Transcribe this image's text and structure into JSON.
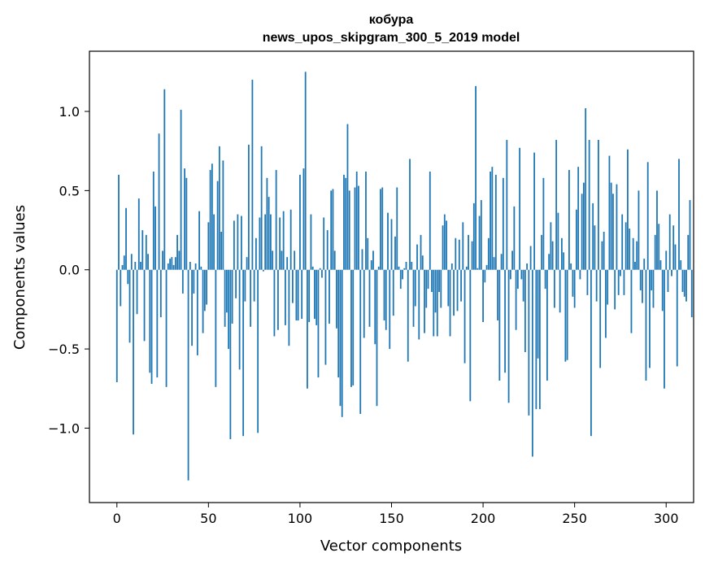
{
  "chart_data": {
    "type": "bar",
    "title": "кобура",
    "subtitle": "news_upos_skipgram_300_5_2019 model",
    "xlabel": "Vector components",
    "ylabel": "Components values",
    "xlim": [
      -15,
      315
    ],
    "ylim": [
      -1.47,
      1.38
    ],
    "xticks": [
      0,
      50,
      100,
      150,
      200,
      250,
      300
    ],
    "xtick_labels": [
      "0",
      "50",
      "100",
      "150",
      "200",
      "250",
      "300"
    ],
    "yticks": [
      -1.0,
      -0.5,
      0.0,
      0.5,
      1.0
    ],
    "ytick_labels": [
      "−1.0",
      "−0.5",
      "0.0",
      "0.5",
      "1.0"
    ],
    "bar_color": "#1f77b4",
    "grid": false,
    "values": [
      -0.71,
      0.6,
      -0.23,
      0.03,
      0.09,
      0.39,
      -0.09,
      -0.46,
      0.1,
      -1.04,
      0.05,
      -0.28,
      0.45,
      0.05,
      0.25,
      -0.45,
      0.22,
      0.1,
      -0.65,
      -0.72,
      0.62,
      0.4,
      -0.68,
      0.86,
      -0.3,
      0.12,
      1.14,
      -0.74,
      0.04,
      0.07,
      0.08,
      0.03,
      0.08,
      0.22,
      0.12,
      1.01,
      -0.15,
      0.64,
      0.58,
      -1.33,
      0.05,
      -0.48,
      -0.15,
      0.04,
      -0.54,
      0.37,
      0.02,
      -0.4,
      -0.26,
      -0.22,
      0.3,
      0.63,
      0.67,
      0.35,
      -0.74,
      0.56,
      0.78,
      0.24,
      0.69,
      -0.36,
      -0.27,
      -0.5,
      -1.07,
      -0.34,
      0.31,
      -0.18,
      0.35,
      -0.63,
      0.34,
      -1.05,
      -0.2,
      0.08,
      0.79,
      -0.36,
      1.2,
      -0.2,
      0.2,
      -1.03,
      0.33,
      0.78,
      -0.01,
      0.35,
      0.58,
      0.46,
      0.35,
      0.12,
      -0.42,
      0.63,
      -0.38,
      0.33,
      0.12,
      0.37,
      -0.35,
      0.08,
      -0.48,
      0.38,
      -0.21,
      0.12,
      -0.32,
      -0.32,
      0.6,
      -0.31,
      0.64,
      1.25,
      -0.75,
      -0.33,
      0.35,
      0.02,
      -0.31,
      -0.35,
      -0.68,
      0.01,
      -0.05,
      0.33,
      -0.6,
      0.25,
      -0.34,
      0.5,
      0.51,
      0.12,
      -0.37,
      -0.68,
      -0.86,
      -0.93,
      0.6,
      0.58,
      0.92,
      0.5,
      -0.74,
      -0.73,
      0.52,
      0.62,
      0.53,
      -0.91,
      0.13,
      -0.43,
      0.62,
      0.2,
      -0.36,
      0.06,
      0.12,
      -0.47,
      -0.86,
      0.02,
      0.51,
      0.52,
      -0.32,
      -0.38,
      0.36,
      -0.5,
      0.32,
      -0.29,
      0.21,
      0.52,
      0.02,
      -0.12,
      -0.06,
      0.01,
      0.05,
      -0.58,
      0.7,
      0.05,
      -0.36,
      -0.23,
      0.16,
      -0.44,
      0.22,
      0.09,
      -0.4,
      -0.24,
      -0.12,
      0.62,
      -0.14,
      -0.42,
      -0.27,
      -0.42,
      -0.14,
      -0.24,
      0.28,
      0.35,
      0.31,
      -0.23,
      -0.42,
      0.04,
      -0.29,
      0.2,
      -0.26,
      0.19,
      -0.2,
      0.3,
      -0.59,
      0.02,
      0.22,
      -0.83,
      0.18,
      0.42,
      1.16,
      0.01,
      0.34,
      0.44,
      -0.33,
      -0.08,
      0.03,
      0.2,
      0.62,
      0.65,
      0.08,
      0.6,
      -0.32,
      -0.7,
      0.1,
      0.58,
      -0.65,
      0.82,
      -0.84,
      -0.06,
      0.12,
      0.4,
      -0.38,
      -0.12,
      0.77,
      -0.06,
      -0.2,
      -0.52,
      0.04,
      -0.92,
      0.15,
      -1.18,
      0.74,
      -0.88,
      -0.56,
      -0.88,
      0.22,
      0.58,
      -0.12,
      -0.7,
      0.1,
      0.3,
      0.18,
      -0.24,
      0.82,
      0.36,
      -0.27,
      0.2,
      0.11,
      -0.58,
      -0.57,
      0.63,
      0.04,
      -0.17,
      -0.24,
      0.38,
      0.65,
      -0.06,
      0.48,
      0.55,
      1.02,
      -0.16,
      0.82,
      -1.05,
      0.42,
      0.28,
      -0.2,
      0.82,
      -0.62,
      0.18,
      0.24,
      -0.43,
      -0.22,
      0.72,
      0.55,
      0.48,
      -0.25,
      0.54,
      -0.16,
      -0.04,
      0.35,
      -0.16,
      0.3,
      0.76,
      0.26,
      -0.4,
      0.2,
      0.05,
      0.18,
      0.5,
      -0.13,
      -0.21,
      0.07,
      -0.7,
      0.68,
      -0.62,
      -0.13,
      -0.24,
      0.22,
      0.5,
      0.29,
      0.06,
      -0.26,
      -0.75,
      0.12,
      -0.14,
      0.35,
      -0.04,
      0.28,
      0.16,
      -0.61,
      0.7,
      0.06,
      -0.14,
      -0.17,
      -0.2,
      0.22,
      0.44,
      -0.3
    ]
  }
}
